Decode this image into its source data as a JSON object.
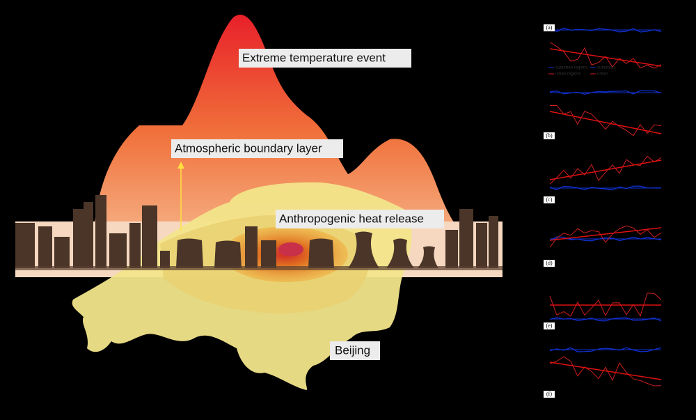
{
  "illustration": {
    "labels": [
      "Extreme temperature event",
      "Atmospheric boundary layer",
      "Anthropogenic heat release",
      "Beijing"
    ]
  },
  "panels": {
    "labels": [
      "(a)",
      "(b)",
      "(c)",
      "(d)",
      "(e)",
      "(f)"
    ],
    "legend": [
      "suburban regions",
      "suburban",
      "urban regions",
      "urban"
    ]
  }
}
